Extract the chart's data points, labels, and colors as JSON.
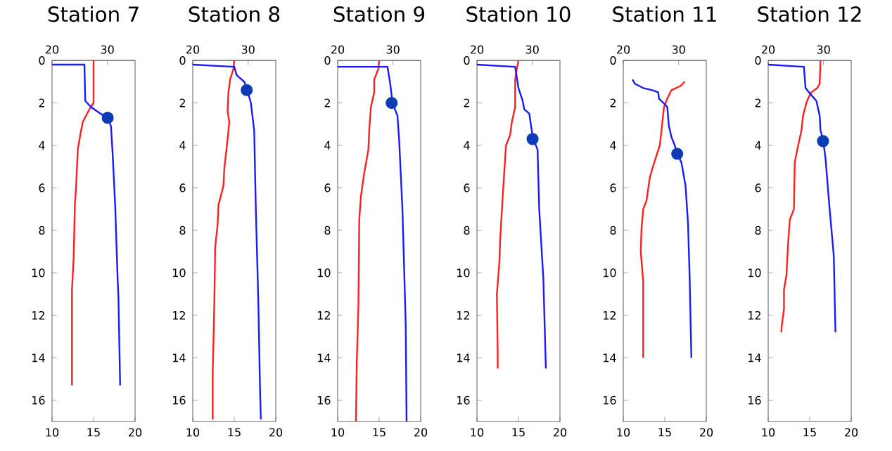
{
  "chart_data": [
    {
      "type": "line",
      "title": "Station 7",
      "xlim": [
        10,
        20
      ],
      "xticks": [
        10,
        15,
        20
      ],
      "x2lim": [
        20,
        35
      ],
      "x2ticks": [
        20,
        30
      ],
      "ylim": [
        17,
        0
      ],
      "yticks": [
        0,
        2,
        4,
        6,
        8,
        10,
        12,
        14,
        16
      ],
      "series": [
        {
          "color": "#ff2020",
          "x": [
            15.0,
            15.0,
            14.5,
            13.7,
            13.4,
            13.1,
            12.9,
            12.75,
            12.6,
            12.4,
            12.4
          ],
          "values": [
            0,
            2.0,
            2.3,
            2.9,
            3.5,
            4.2,
            5.9,
            6.8,
            9.3,
            10.8,
            15.3
          ]
        },
        {
          "color": "#1a1aff",
          "axis": "x2",
          "x": [
            20,
            25.85,
            26.0,
            27.05,
            28.7,
            30.05,
            30.65,
            30.95,
            31.4,
            31.85,
            32.0,
            32.3
          ],
          "values": [
            0.2,
            0.2,
            1.9,
            2.2,
            2.5,
            2.7,
            3.1,
            4.4,
            6.8,
            10.3,
            11.2,
            15.3
          ]
        },
        {
          "type": "scatter",
          "axis": "x2",
          "marker": "circle",
          "color": "#0b3bb5",
          "x": [
            30.05
          ],
          "values": [
            2.7
          ]
        }
      ]
    },
    {
      "type": "line",
      "title": "Station 8",
      "xlim": [
        10,
        20
      ],
      "xticks": [
        10,
        15,
        20
      ],
      "x2lim": [
        20,
        35
      ],
      "x2ticks": [
        20,
        30
      ],
      "ylim": [
        17,
        0
      ],
      "yticks": [
        0,
        2,
        4,
        6,
        8,
        10,
        12,
        14,
        16
      ],
      "series": [
        {
          "color": "#ff2020",
          "x": [
            15.0,
            14.9,
            14.5,
            14.3,
            14.2,
            14.4,
            14.2,
            13.8,
            13.7,
            13.1,
            13.0,
            12.7,
            12.6,
            12.4,
            12.4
          ],
          "values": [
            0,
            0.4,
            0.9,
            1.5,
            2.4,
            2.9,
            3.7,
            5.1,
            5.9,
            6.8,
            7.7,
            8.8,
            11.4,
            14.8,
            16.9
          ]
        },
        {
          "color": "#1a1aff",
          "axis": "x2",
          "x": [
            20,
            27.5,
            27.95,
            29.3,
            29.75,
            30.5,
            31.1,
            31.4,
            31.85,
            32.15,
            32.3
          ],
          "values": [
            0.2,
            0.3,
            0.7,
            1.0,
            1.3,
            2.0,
            3.3,
            7.0,
            11.4,
            15.4,
            16.9
          ]
        },
        {
          "type": "scatter",
          "axis": "x2",
          "marker": "circle",
          "color": "#0b3bb5",
          "x": [
            29.75
          ],
          "values": [
            1.4
          ]
        }
      ]
    },
    {
      "type": "line",
      "title": "Station 9",
      "xlim": [
        10,
        20
      ],
      "xticks": [
        10,
        15,
        20
      ],
      "x2lim": [
        20,
        35
      ],
      "x2ticks": [
        20,
        30
      ],
      "ylim": [
        17,
        0
      ],
      "yticks": [
        0,
        2,
        4,
        6,
        8,
        10,
        12,
        14,
        16
      ],
      "series": [
        {
          "color": "#ff2020",
          "x": [
            15.0,
            14.9,
            14.4,
            14.4,
            14.0,
            13.8,
            13.7,
            13.2,
            12.8,
            12.6,
            12.5,
            12.3,
            12.2
          ],
          "values": [
            0,
            0.4,
            0.9,
            1.5,
            2.2,
            3.3,
            4.2,
            5.3,
            6.4,
            7.5,
            11.5,
            14.3,
            17.0
          ]
        },
        {
          "color": "#1a1aff",
          "axis": "x2",
          "x": [
            20,
            29.0,
            29.5,
            29.9,
            30.8,
            31.1,
            31.7,
            32.0,
            32.3,
            32.45
          ],
          "values": [
            0.3,
            0.3,
            1.1,
            2.0,
            2.6,
            3.7,
            7.0,
            9.7,
            12.5,
            17.0
          ]
        },
        {
          "type": "scatter",
          "axis": "x2",
          "marker": "circle",
          "color": "#0b3bb5",
          "x": [
            29.75
          ],
          "values": [
            2.0
          ]
        }
      ]
    },
    {
      "type": "line",
      "title": "Station 10",
      "xlim": [
        10,
        20
      ],
      "xticks": [
        10,
        15,
        20
      ],
      "x2lim": [
        20,
        35
      ],
      "x2ticks": [
        20,
        30
      ],
      "ylim": [
        17,
        0
      ],
      "yticks": [
        0,
        2,
        4,
        6,
        8,
        10,
        12,
        14,
        16
      ],
      "series": [
        {
          "color": "#ff2020",
          "x": [
            15.0,
            14.8,
            14.6,
            14.6,
            14.2,
            14.0,
            13.5,
            13.4,
            13.1,
            12.8,
            12.7,
            12.4,
            12.5,
            12.5
          ],
          "values": [
            0,
            0.4,
            0.9,
            2.2,
            2.9,
            3.5,
            4.0,
            4.6,
            6.4,
            8.4,
            9.5,
            11.0,
            13.9,
            14.5
          ]
        },
        {
          "color": "#1a1aff",
          "axis": "x2",
          "x": [
            20,
            26.9,
            27.2,
            27.5,
            28.25,
            28.55,
            29.45,
            29.9,
            30.2,
            30.95,
            31.25,
            32.0,
            32.45
          ],
          "values": [
            0.2,
            0.3,
            0.8,
            1.3,
            1.9,
            2.3,
            2.5,
            3.3,
            3.7,
            4.2,
            7.0,
            10.3,
            14.5
          ]
        },
        {
          "type": "scatter",
          "axis": "x2",
          "marker": "circle",
          "color": "#0b3bb5",
          "x": [
            30.05
          ],
          "values": [
            3.7
          ]
        }
      ]
    },
    {
      "type": "line",
      "title": "Station 11",
      "xlim": [
        10,
        20
      ],
      "xticks": [
        10,
        15,
        20
      ],
      "x2lim": [
        20,
        35
      ],
      "x2ticks": [
        20,
        30
      ],
      "ylim": [
        17,
        0
      ],
      "yticks": [
        0,
        2,
        4,
        6,
        8,
        10,
        12,
        14,
        16
      ],
      "series": [
        {
          "color": "#ff2020",
          "x": [
            17.4,
            16.9,
            15.8,
            15.3,
            14.9,
            14.6,
            14.4,
            13.9,
            13.5,
            13.2,
            12.8,
            12.4,
            12.2,
            12.1,
            12.4,
            12.4
          ],
          "values": [
            1.0,
            1.2,
            1.4,
            1.8,
            2.2,
            3.3,
            4.0,
            4.6,
            5.1,
            5.5,
            6.6,
            7.0,
            7.9,
            9.0,
            10.4,
            14.0
          ]
        },
        {
          "color": "#1a1aff",
          "axis": "x2",
          "x": [
            21.65,
            22.1,
            23.6,
            25.25,
            26.3,
            26.45,
            27.65,
            27.95,
            28.25,
            28.7,
            29.3,
            29.75,
            30.5,
            31.25,
            31.7,
            32.0,
            32.3
          ],
          "values": [
            0.9,
            1.1,
            1.3,
            1.4,
            1.5,
            1.8,
            2.1,
            2.2,
            3.1,
            3.6,
            4.0,
            4.4,
            4.8,
            5.9,
            7.7,
            10.3,
            14.0
          ]
        },
        {
          "type": "scatter",
          "axis": "x2",
          "marker": "circle",
          "color": "#0b3bb5",
          "x": [
            29.75
          ],
          "values": [
            4.4
          ]
        }
      ]
    },
    {
      "type": "line",
      "title": "Station 12",
      "xlim": [
        10,
        20
      ],
      "xticks": [
        10,
        15,
        20
      ],
      "x2lim": [
        20,
        35
      ],
      "x2ticks": [
        20,
        30
      ],
      "ylim": [
        17,
        0
      ],
      "yticks": [
        0,
        2,
        4,
        6,
        8,
        10,
        12,
        14,
        16
      ],
      "series": [
        {
          "color": "#ff2020",
          "x": [
            16.3,
            16.2,
            15.9,
            15.2,
            14.8,
            14.6,
            14.2,
            14.0,
            13.5,
            13.2,
            13.1,
            12.6,
            12.4,
            12.2,
            11.9,
            11.9,
            11.6,
            11.6
          ],
          "values": [
            0,
            1.1,
            1.3,
            1.5,
            1.8,
            2.0,
            2.6,
            3.3,
            4.2,
            4.8,
            7.0,
            7.5,
            8.6,
            10.1,
            10.8,
            11.7,
            12.6,
            12.8
          ]
        },
        {
          "color": "#1a1aff",
          "axis": "x2",
          "x": [
            20,
            26.45,
            26.75,
            27.35,
            28.7,
            29.3,
            29.45,
            29.9,
            30.35,
            31.1,
            31.85,
            32.15
          ],
          "values": [
            0.2,
            0.3,
            1.3,
            1.5,
            1.9,
            2.6,
            3.3,
            3.7,
            4.6,
            7.0,
            9.2,
            12.8
          ]
        },
        {
          "type": "scatter",
          "axis": "x2",
          "marker": "circle",
          "color": "#0b3bb5",
          "x": [
            29.9
          ],
          "values": [
            3.8
          ]
        }
      ]
    }
  ]
}
